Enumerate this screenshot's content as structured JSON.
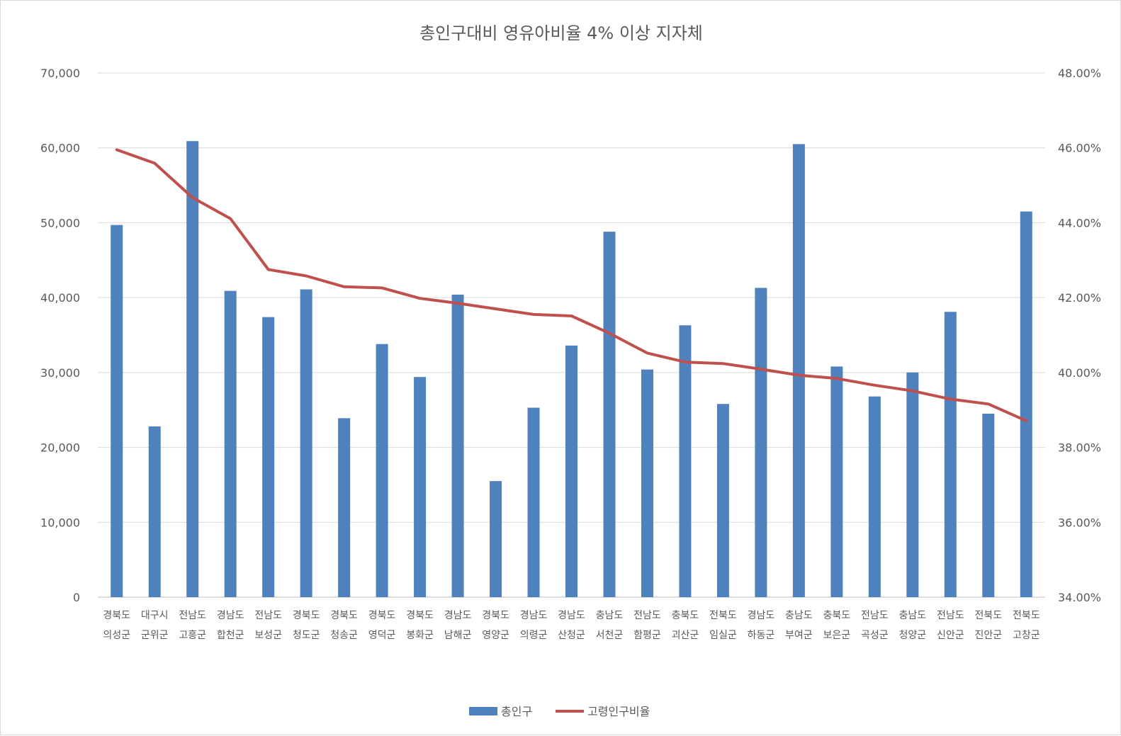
{
  "chart_data": {
    "type": "bar",
    "title": "총인구대비 영유아비율 4% 이상 지자체",
    "categories": [
      [
        "경북도",
        "의성군"
      ],
      [
        "대구시",
        "군위군"
      ],
      [
        "전남도",
        "고흥군"
      ],
      [
        "경남도",
        "합천군"
      ],
      [
        "전남도",
        "보성군"
      ],
      [
        "경북도",
        "청도군"
      ],
      [
        "경북도",
        "청송군"
      ],
      [
        "경북도",
        "영덕군"
      ],
      [
        "경북도",
        "봉화군"
      ],
      [
        "경남도",
        "남해군"
      ],
      [
        "경북도",
        "영양군"
      ],
      [
        "경남도",
        "의령군"
      ],
      [
        "경남도",
        "산청군"
      ],
      [
        "충남도",
        "서천군"
      ],
      [
        "전남도",
        "함평군"
      ],
      [
        "충북도",
        "괴산군"
      ],
      [
        "전북도",
        "임실군"
      ],
      [
        "경남도",
        "하동군"
      ],
      [
        "충남도",
        "부여군"
      ],
      [
        "충북도",
        "보은군"
      ],
      [
        "전남도",
        "곡성군"
      ],
      [
        "충남도",
        "청양군"
      ],
      [
        "전남도",
        "신안군"
      ],
      [
        "전북도",
        "진안군"
      ],
      [
        "전북도",
        "고창군"
      ]
    ],
    "series": [
      {
        "name": "총인구",
        "kind": "bar",
        "axis": "left",
        "color": "#4f81bd",
        "values": [
          49700,
          22800,
          60900,
          40900,
          37400,
          41100,
          23900,
          33800,
          29400,
          40400,
          15500,
          25300,
          33600,
          48800,
          30400,
          36300,
          25800,
          41300,
          60500,
          30800,
          26800,
          30000,
          38100,
          24500,
          51500
        ]
      },
      {
        "name": "고령인구비율",
        "kind": "line",
        "axis": "right",
        "color": "#c0504d",
        "values": [
          0.4595,
          0.4559,
          0.4467,
          0.4411,
          0.4275,
          0.4258,
          0.4229,
          0.4226,
          0.4198,
          0.4185,
          0.417,
          0.4155,
          0.4151,
          0.4105,
          0.4052,
          0.4028,
          0.4024,
          0.4009,
          0.3993,
          0.3984,
          0.3966,
          0.3951,
          0.3929,
          0.3916,
          0.3871
        ]
      }
    ],
    "y_left": {
      "ylim": [
        0,
        70000
      ],
      "ticks": [
        "0",
        "10,000",
        "20,000",
        "30,000",
        "40,000",
        "50,000",
        "60,000",
        "70,000"
      ]
    },
    "y_right": {
      "ylim": [
        0.34,
        0.48
      ],
      "ticks": [
        "34.00%",
        "36.00%",
        "38.00%",
        "40.00%",
        "42.00%",
        "44.00%",
        "46.00%",
        "48.00%"
      ]
    },
    "grid": true,
    "legend": "bottom"
  }
}
